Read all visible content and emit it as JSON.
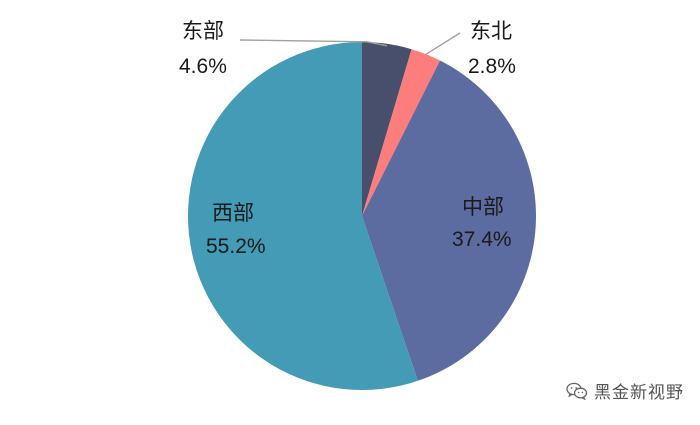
{
  "chart_data": {
    "type": "pie",
    "start_angle_deg": 0,
    "direction": "clockwise",
    "slices": [
      {
        "name": "东部",
        "value": 4.6,
        "label_value": "4.6%",
        "color": "#474F6C"
      },
      {
        "name": "东北",
        "value": 2.8,
        "label_value": "2.8%",
        "color": "#FC7D7C"
      },
      {
        "name": "中部",
        "value": 37.4,
        "label_value": "37.4%",
        "color": "#5C6BA0"
      },
      {
        "name": "西部",
        "value": 55.2,
        "label_value": "55.2%",
        "color": "#439BB6"
      }
    ],
    "leader_line_color": "#a0a0a0"
  },
  "watermark": {
    "text": "黑金新视野",
    "icon": "wechat-icon"
  }
}
